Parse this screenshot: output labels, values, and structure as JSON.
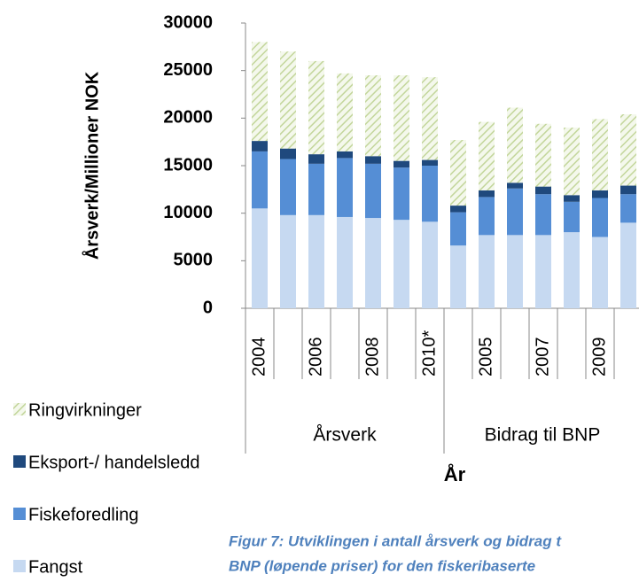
{
  "chart_data": {
    "type": "bar",
    "stacked": true,
    "y_label": "Årsverk/Millioner NOK",
    "x_label": "År",
    "categories": [
      "2004",
      null,
      "2006",
      null,
      "2008",
      null,
      "2010*",
      null,
      "2005",
      null,
      "2007",
      null,
      "2009",
      null
    ],
    "x_groups": [
      "Årsverk",
      "Bidrag til BNP"
    ],
    "series": [
      {
        "name": "Fangst",
        "color": "#c6d9f1",
        "values": [
          10500,
          9800,
          9800,
          9600,
          9500,
          9300,
          9100,
          6600,
          7700,
          7700,
          7700,
          8000,
          7500,
          9000
        ]
      },
      {
        "name": "Fiskeforedling",
        "color": "#558ed5",
        "values": [
          6000,
          5900,
          5400,
          6200,
          5700,
          5500,
          5900,
          3500,
          4000,
          4900,
          4300,
          3200,
          4100,
          3000
        ]
      },
      {
        "name": "Eksport-/ handelsledd",
        "color": "#1f497d",
        "values": [
          1100,
          1100,
          1000,
          700,
          800,
          700,
          600,
          700,
          700,
          600,
          800,
          700,
          800,
          900
        ]
      },
      {
        "name": "Ringvirkninger",
        "color": "#c3d69b",
        "hatch": true,
        "values": [
          10400,
          10200,
          9800,
          8200,
          8500,
          9000,
          8700,
          6900,
          7200,
          7900,
          6600,
          7100,
          7500,
          7500
        ]
      }
    ],
    "ylim": [
      0,
      30000
    ],
    "yticks": [
      0,
      5000,
      10000,
      15000,
      20000,
      25000,
      30000
    ],
    "grid": false
  },
  "caption": [
    "Figur 7: Utviklingen i antall årsverk og bidrag t",
    "BNP (løpende priser) for den fiskeribaserte"
  ]
}
